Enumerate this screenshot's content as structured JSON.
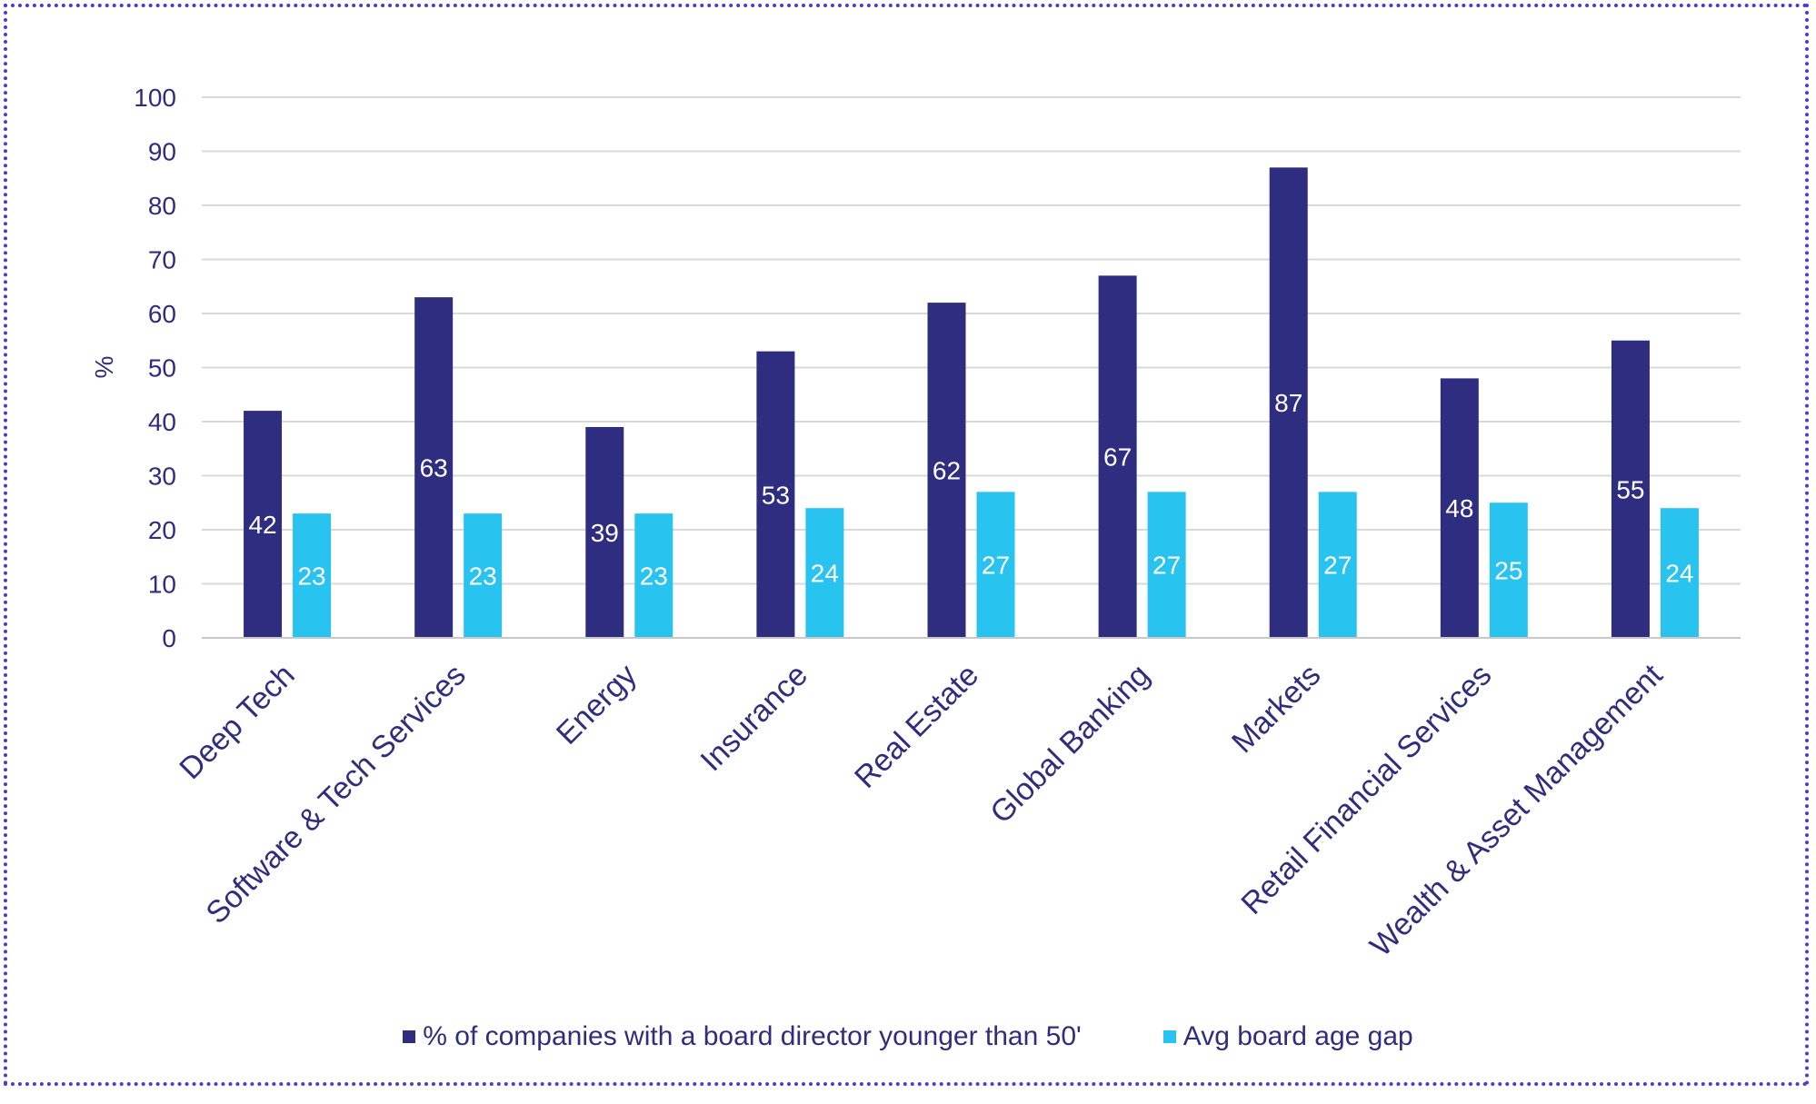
{
  "chart_data": {
    "type": "bar",
    "categories": [
      "Deep Tech",
      "Software & Tech Services",
      "Energy",
      "Insurance",
      "Real Estate",
      "Global Banking",
      "Markets",
      "Retail Financial Services",
      "Wealth & Asset Management"
    ],
    "series": [
      {
        "name": "% of companies with a board director younger than 50'",
        "color": "#2e2d7f",
        "values": [
          42,
          63,
          39,
          53,
          62,
          67,
          87,
          48,
          55
        ]
      },
      {
        "name": "Avg board age gap",
        "color": "#29c3f0",
        "values": [
          23,
          23,
          23,
          24,
          27,
          27,
          27,
          25,
          24
        ]
      }
    ],
    "title": "",
    "xlabel": "",
    "ylabel": "%",
    "ylim": [
      0,
      100
    ],
    "yticks": [
      0,
      10,
      20,
      30,
      40,
      50,
      60,
      70,
      80,
      90,
      100
    ],
    "grid": true,
    "legend_position": "bottom",
    "data_labels": true
  }
}
